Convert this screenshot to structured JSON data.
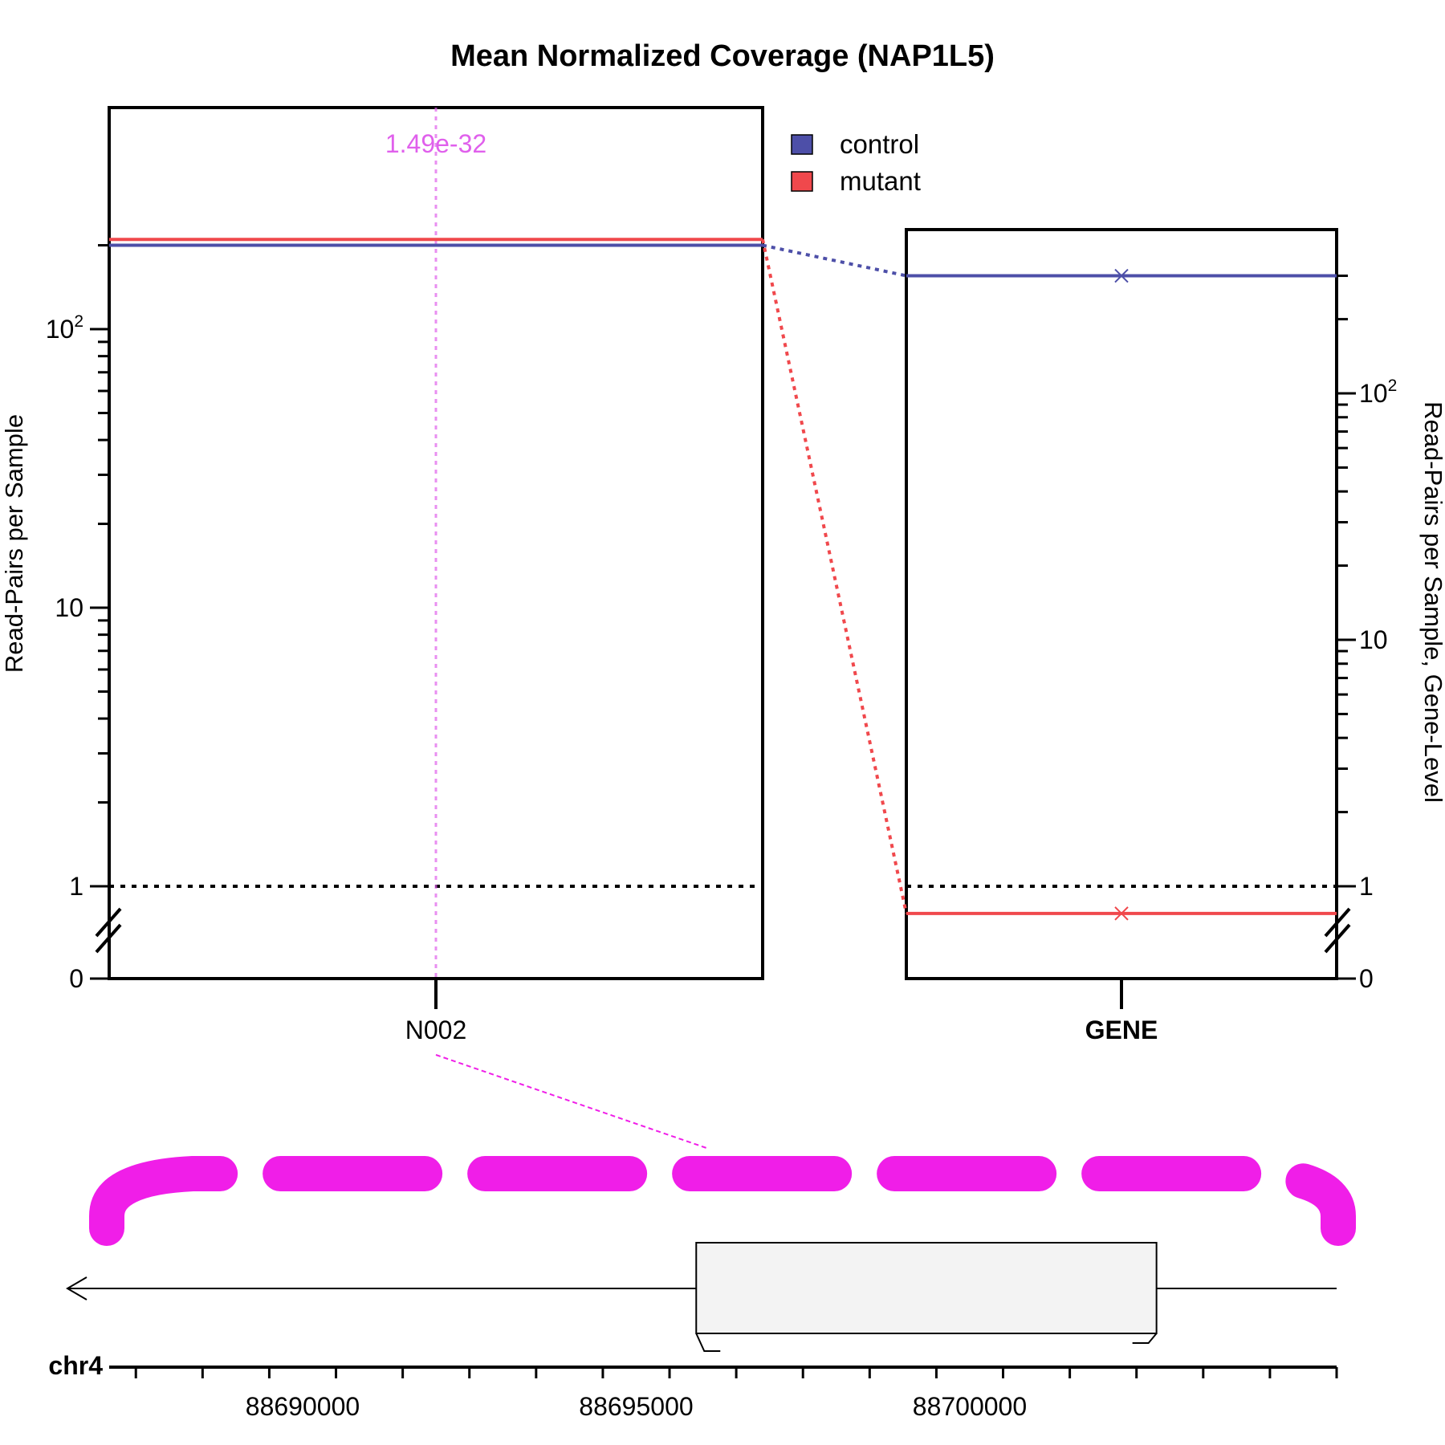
{
  "chart_data": {
    "type": "line",
    "title": "Mean Normalized Coverage (NAP1L5)",
    "colors": {
      "control": "#4d4fa8",
      "mutant": "#f0484c",
      "pvalue": "#e060ec",
      "splice": "#f01ee8",
      "threshold": "#000000"
    },
    "legend": {
      "position": "top-center",
      "entries": [
        "control",
        "mutant"
      ]
    },
    "left_panel": {
      "ylabel": "Read-Pairs per Sample",
      "yscale": "log with axis break (0 at bottom)",
      "ylim": [
        0,
        220
      ],
      "yticks": [
        {
          "value": 0,
          "label": "0"
        },
        {
          "value": 1,
          "label": "1"
        },
        {
          "value": 10,
          "label": "10"
        },
        {
          "value": 100,
          "label": "10",
          "sup": "2"
        }
      ],
      "categories": [
        "N002"
      ],
      "series": [
        {
          "name": "control",
          "values": [
            200
          ]
        },
        {
          "name": "mutant",
          "values": [
            210
          ]
        }
      ],
      "threshold": 1,
      "annotation": {
        "label": "1.49e-32",
        "category": "N002"
      }
    },
    "right_panel": {
      "ylabel": "Read-Pairs per Sample, Gene-Level",
      "yscale": "log with axis break (0 at bottom)",
      "ylim": [
        0,
        400
      ],
      "yticks": [
        {
          "value": 0,
          "label": "0"
        },
        {
          "value": 1,
          "label": "1"
        },
        {
          "value": 10,
          "label": "10"
        },
        {
          "value": 100,
          "label": "10",
          "sup": "2"
        }
      ],
      "categories": [
        "GENE"
      ],
      "series": [
        {
          "name": "control",
          "values": [
            300
          ]
        },
        {
          "name": "mutant",
          "values": [
            0.7
          ]
        }
      ],
      "threshold": 1
    },
    "genome_track": {
      "chromosome": "chr4",
      "xlim": [
        88687100,
        88705500
      ],
      "xticks": [
        {
          "value": 88690000,
          "label": "88690000"
        },
        {
          "value": 88695000,
          "label": "88695000"
        },
        {
          "value": 88700000,
          "label": "88700000"
        }
      ],
      "strand": "-",
      "gene_box": [
        88695900,
        88702800
      ]
    }
  }
}
